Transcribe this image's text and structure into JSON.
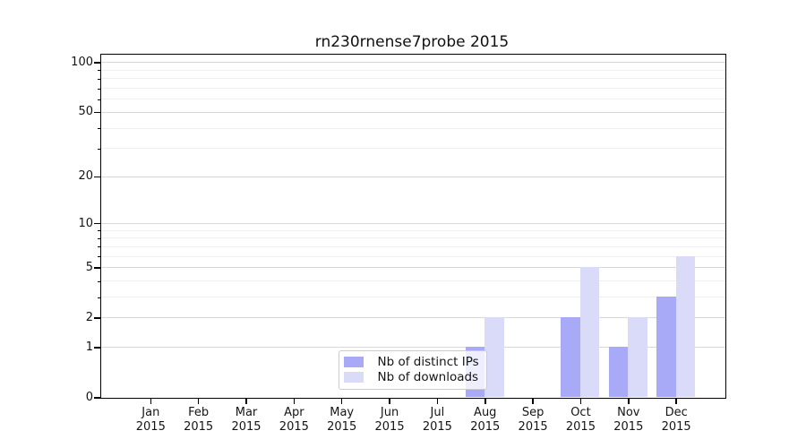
{
  "chart_data": {
    "type": "bar",
    "title": "rn230rnense7probe 2015",
    "categories": [
      "Jan 2015",
      "Feb 2015",
      "Mar 2015",
      "Apr 2015",
      "May 2015",
      "Jun 2015",
      "Jul 2015",
      "Aug 2015",
      "Sep 2015",
      "Oct 2015",
      "Nov 2015",
      "Dec 2015"
    ],
    "series": [
      {
        "name": "Nb of distinct IPs",
        "color": "#a8aaf7",
        "values": [
          0,
          0,
          0,
          0,
          0,
          0,
          0,
          1,
          0,
          2,
          1,
          3
        ]
      },
      {
        "name": "Nb of downloads",
        "color": "#d9dbf9",
        "values": [
          0,
          0,
          0,
          0,
          0,
          0,
          0,
          2,
          0,
          5,
          2,
          6
        ]
      }
    ],
    "xlabel": "",
    "ylabel": "",
    "y_axis": {
      "scale": "log1p",
      "ticks": [
        0,
        1,
        2,
        5,
        10,
        20,
        50,
        100
      ],
      "minor_ticks": [
        3,
        4,
        6,
        7,
        8,
        9,
        30,
        40,
        60,
        70,
        80,
        90
      ],
      "ylim": [
        0,
        112
      ]
    },
    "legend": {
      "position": "lower center",
      "entries": [
        "Nb of distinct IPs",
        "Nb of downloads"
      ]
    },
    "grid": true,
    "colors": {
      "bar_distinct_ips": "#a8aaf7",
      "bar_downloads": "#d9dbf9",
      "major_grid": "#d8d8d8",
      "minor_grid": "#efefef",
      "spine": "#000000",
      "text": "#151515"
    }
  }
}
